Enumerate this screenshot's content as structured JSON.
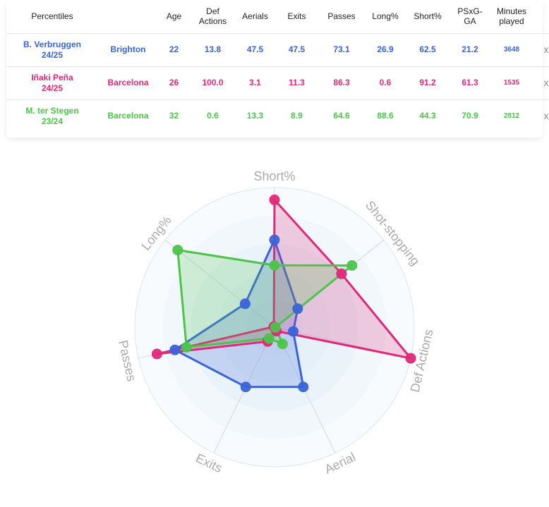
{
  "table": {
    "headers": [
      "Percentiles",
      "Age",
      "Def Actions",
      "Aerials",
      "Exits",
      "Passes",
      "Long%",
      "Short%",
      "PSxG-GA",
      "Minutes played"
    ],
    "remove_symbol": "x",
    "players": [
      {
        "name": "B. Verbruggen 24/25",
        "team": "Brighton",
        "color": "#3b63d8",
        "values": [
          "22",
          "13.8",
          "47.5",
          "47.5",
          "73.1",
          "26.9",
          "62.5",
          "21.2",
          "3648"
        ]
      },
      {
        "name": "Iñaki Peña 24/25",
        "team": "Barcelona",
        "color": "#e0287a",
        "values": [
          "26",
          "100.0",
          "3.1",
          "11.3",
          "86.3",
          "0.6",
          "91.2",
          "61.3",
          "1535"
        ]
      },
      {
        "name": "M. ter Stegen 23/24",
        "team": "Barcelona",
        "color": "#4cc44c",
        "values": [
          "32",
          "0.6",
          "13.3",
          "8.9",
          "64.6",
          "88.6",
          "44.3",
          "70.9",
          "2812"
        ]
      }
    ]
  },
  "chart_data": {
    "type": "radar",
    "axes": [
      "Short%",
      "Shot-stopping",
      "Def Actions",
      "Aerial",
      "Exits",
      "Passes",
      "Long%"
    ],
    "range": [
      0,
      100
    ],
    "series": [
      {
        "name": "B. Verbruggen 24/25",
        "color": "#3b63d8",
        "values": [
          62.5,
          21.2,
          13.8,
          47.5,
          47.5,
          73.1,
          26.9
        ]
      },
      {
        "name": "Iñaki Peña 24/25",
        "color": "#e0287a",
        "values": [
          91.2,
          61.3,
          100.0,
          3.1,
          11.3,
          86.3,
          0.6
        ]
      },
      {
        "name": "M. ter Stegen 23/24",
        "color": "#4cc44c",
        "values": [
          44.3,
          70.9,
          0.6,
          13.3,
          8.9,
          64.6,
          88.6
        ]
      }
    ]
  }
}
